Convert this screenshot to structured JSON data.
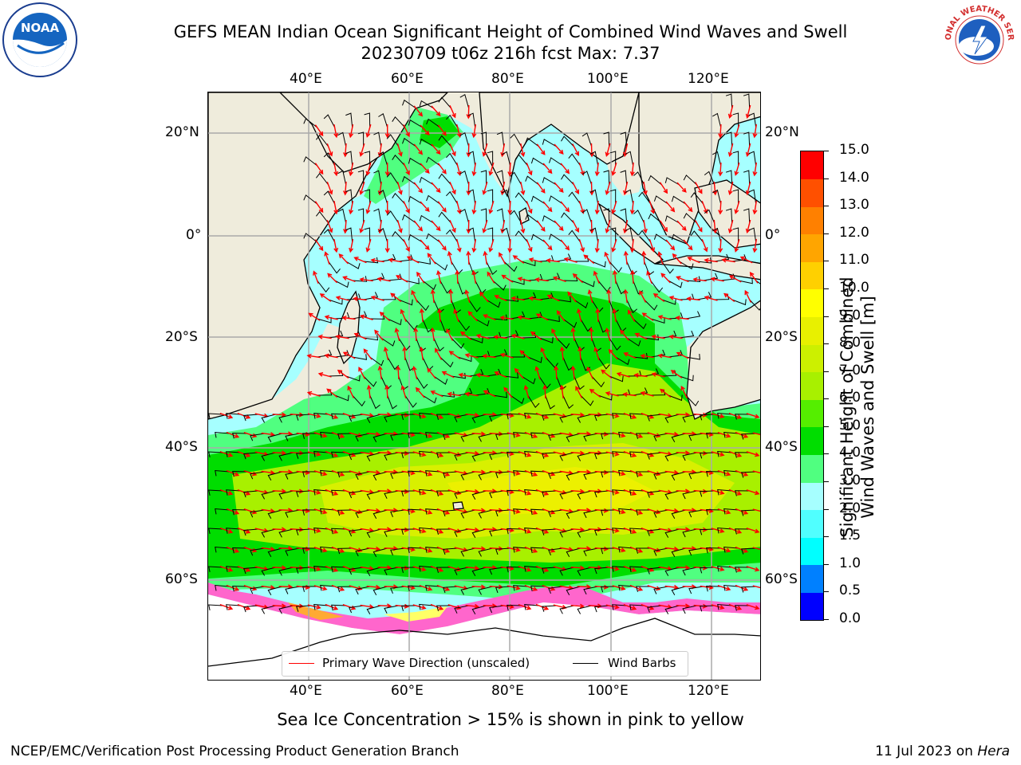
{
  "header": {
    "title_line1": "GEFS MEAN Indian Ocean Significant Height of Combined Wind Waves and Swell",
    "title_line2": "20230709 t06z 216h fcst   Max: 7.37",
    "left_logo": {
      "name": "noaa-logo",
      "text": "NOAA"
    },
    "right_logo": {
      "name": "national-weather-service-logo",
      "text": "NATIONAL WEATHER SERVICE"
    }
  },
  "map": {
    "lon_labels_top": [
      "40°E",
      "60°E",
      "80°E",
      "100°E",
      "120°E"
    ],
    "lon_labels_bottom": [
      "40°E",
      "60°E",
      "80°E",
      "100°E",
      "120°E"
    ],
    "lat_labels_left": [
      "20°N",
      "0°",
      "20°S",
      "40°S",
      "60°S"
    ],
    "lat_labels_right": [
      "20°N",
      "0°",
      "20°S",
      "40°S",
      "60°S"
    ],
    "colors": {
      "land": "#efecdc",
      "ocean_low": "#a6ffff",
      "wave_arrow": "#ff0000",
      "barb": "#000000"
    }
  },
  "legend": {
    "wave_direction": "Primary Wave Direction (unscaled)",
    "wind_barbs": "Wind Barbs"
  },
  "colorbar": {
    "title": "Significant Height of Combined Wind Waves and Swell [m]",
    "title_line1": "Significant Height of Combined",
    "title_line2": "Wind Waves and Swell [m]",
    "ticks": [
      "0.0",
      "0.5",
      "1.0",
      "1.5",
      "2.0",
      "3.0",
      "4.0",
      "5.0",
      "6.0",
      "7.0",
      "8.0",
      "9.0",
      "10.0",
      "11.0",
      "12.0",
      "13.0",
      "14.0",
      "15.0"
    ],
    "colors": [
      "#0000ff",
      "#0080ff",
      "#00ffff",
      "#50ffff",
      "#a6ffff",
      "#50ff80",
      "#00dd00",
      "#55ee00",
      "#a8f000",
      "#ccf000",
      "#e8f000",
      "#ffff00",
      "#ffd000",
      "#ffa500",
      "#ff8000",
      "#ff5000",
      "#ff0000"
    ]
  },
  "bottom_note": "Sea Ice Concentration > 15% is shown in pink to yellow",
  "footer": {
    "left": "NCEP/EMC/Verification Post Processing Product Generation Branch",
    "right_date": "11 Jul 2023 on ",
    "right_host": "Hera"
  }
}
